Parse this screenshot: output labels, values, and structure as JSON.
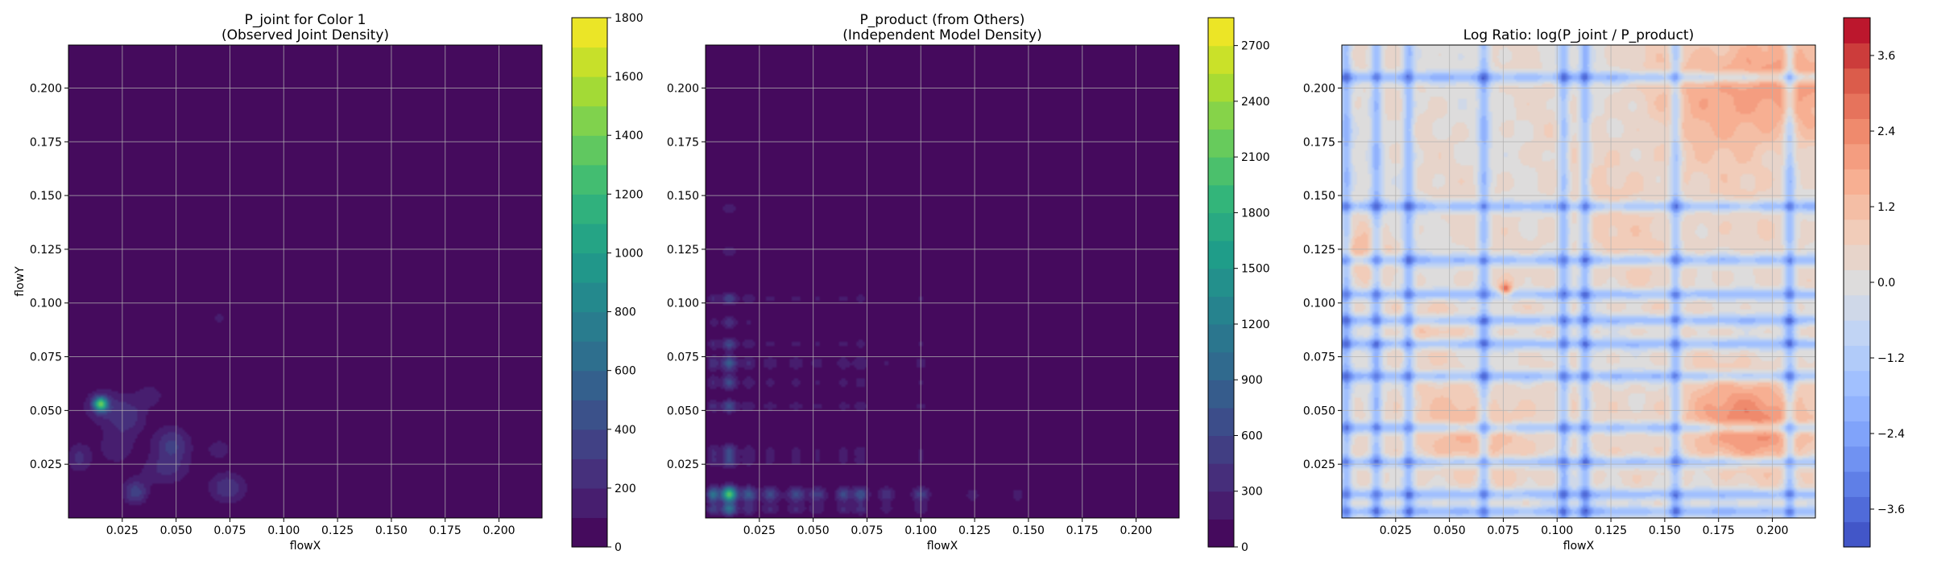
{
  "charts": [
    {
      "type": "heatmap",
      "title": [
        "P_joint for Color 1",
        "(Observed Joint Density)"
      ],
      "xlabel": "flowX",
      "ylabel": "flowY",
      "xlim": [
        0.0,
        0.22
      ],
      "ylim": [
        0.0,
        0.22
      ],
      "xticks": [
        0.025,
        0.05,
        0.075,
        0.1,
        0.125,
        0.15,
        0.175,
        0.2
      ],
      "xtick_labels": [
        "0.025",
        "0.050",
        "0.075",
        "0.100",
        "0.125",
        "0.150",
        "0.175",
        "0.200"
      ],
      "yticks": [
        0.025,
        0.05,
        0.075,
        0.1,
        0.125,
        0.15,
        0.175,
        0.2
      ],
      "ytick_labels": [
        "0.025",
        "0.050",
        "0.075",
        "0.100",
        "0.125",
        "0.150",
        "0.175",
        "0.200"
      ],
      "grid": true,
      "colormap": "viridis",
      "colorbar": {
        "min": 0,
        "max": 1800,
        "ticks": [
          0,
          200,
          400,
          600,
          800,
          1000,
          1200,
          1400,
          1600,
          1800
        ],
        "tick_labels": [
          "0",
          "200",
          "400",
          "600",
          "800",
          "1000",
          "1200",
          "1400",
          "1600",
          "1800"
        ],
        "levels": 18
      },
      "peaks": [
        {
          "x": 0.015,
          "y": 0.053,
          "value": 1200,
          "sx": 0.0022,
          "sy": 0.0022
        },
        {
          "x": 0.016,
          "y": 0.052,
          "value": 220,
          "sx": 0.007,
          "sy": 0.006
        },
        {
          "x": 0.028,
          "y": 0.047,
          "value": 230,
          "sx": 0.006,
          "sy": 0.006
        },
        {
          "x": 0.048,
          "y": 0.034,
          "value": 320,
          "sx": 0.006,
          "sy": 0.006
        },
        {
          "x": 0.045,
          "y": 0.022,
          "value": 200,
          "sx": 0.008,
          "sy": 0.005
        },
        {
          "x": 0.074,
          "y": 0.014,
          "value": 300,
          "sx": 0.006,
          "sy": 0.005
        },
        {
          "x": 0.031,
          "y": 0.012,
          "value": 360,
          "sx": 0.004,
          "sy": 0.004
        },
        {
          "x": 0.005,
          "y": 0.028,
          "value": 230,
          "sx": 0.004,
          "sy": 0.005
        },
        {
          "x": 0.022,
          "y": 0.033,
          "value": 180,
          "sx": 0.006,
          "sy": 0.006
        },
        {
          "x": 0.07,
          "y": 0.032,
          "value": 150,
          "sx": 0.005,
          "sy": 0.004
        },
        {
          "x": 0.07,
          "y": 0.093,
          "value": 120,
          "sx": 0.004,
          "sy": 0.003
        },
        {
          "x": 0.038,
          "y": 0.057,
          "value": 150,
          "sx": 0.005,
          "sy": 0.004
        }
      ]
    },
    {
      "type": "heatmap",
      "title": [
        "P_product (from Others)",
        "(Independent Model Density)"
      ],
      "xlabel": "flowX",
      "ylabel": "",
      "xlim": [
        0.0,
        0.22
      ],
      "ylim": [
        0.0,
        0.22
      ],
      "xticks": [
        0.025,
        0.05,
        0.075,
        0.1,
        0.125,
        0.15,
        0.175,
        0.2
      ],
      "xtick_labels": [
        "0.025",
        "0.050",
        "0.075",
        "0.100",
        "0.125",
        "0.150",
        "0.175",
        "0.200"
      ],
      "yticks": [
        0.025,
        0.05,
        0.075,
        0.1,
        0.125,
        0.15,
        0.175,
        0.2
      ],
      "ytick_labels": [
        "0.025",
        "0.050",
        "0.075",
        "0.100",
        "0.125",
        "0.150",
        "0.175",
        "0.200"
      ],
      "grid": true,
      "colormap": "viridis",
      "colorbar": {
        "min": 0,
        "max": 2850,
        "ticks": [
          0,
          300,
          600,
          900,
          1200,
          1500,
          1800,
          2100,
          2400,
          2700
        ],
        "tick_labels": [
          "0",
          "300",
          "600",
          "900",
          "1200",
          "1500",
          "1800",
          "2100",
          "2400",
          "2700"
        ],
        "levels": 19
      },
      "marginal_x": [
        {
          "x": 0.011,
          "w": 0.0025,
          "a": 1.0
        },
        {
          "x": 0.0035,
          "w": 0.002,
          "a": 0.5
        },
        {
          "x": 0.02,
          "w": 0.0025,
          "a": 0.4
        },
        {
          "x": 0.03,
          "w": 0.003,
          "a": 0.3
        },
        {
          "x": 0.042,
          "w": 0.003,
          "a": 0.3
        },
        {
          "x": 0.052,
          "w": 0.003,
          "a": 0.25
        },
        {
          "x": 0.064,
          "w": 0.0025,
          "a": 0.3
        },
        {
          "x": 0.072,
          "w": 0.0025,
          "a": 0.35
        },
        {
          "x": 0.084,
          "w": 0.003,
          "a": 0.2
        },
        {
          "x": 0.1,
          "w": 0.003,
          "a": 0.25
        },
        {
          "x": 0.124,
          "w": 0.0025,
          "a": 0.12
        },
        {
          "x": 0.145,
          "w": 0.002,
          "a": 0.12
        }
      ],
      "marginal_y": [
        {
          "y": 0.011,
          "w": 0.0025,
          "a": 1.0
        },
        {
          "y": 0.004,
          "w": 0.002,
          "a": 0.5
        },
        {
          "y": 0.026,
          "w": 0.002,
          "a": 0.25
        },
        {
          "y": 0.031,
          "w": 0.0025,
          "a": 0.3
        },
        {
          "y": 0.052,
          "w": 0.002,
          "a": 0.35
        },
        {
          "y": 0.063,
          "w": 0.0025,
          "a": 0.3
        },
        {
          "y": 0.072,
          "w": 0.0025,
          "a": 0.4
        },
        {
          "y": 0.081,
          "w": 0.002,
          "a": 0.3
        },
        {
          "y": 0.091,
          "w": 0.002,
          "a": 0.2
        },
        {
          "y": 0.102,
          "w": 0.002,
          "a": 0.3
        },
        {
          "y": 0.124,
          "w": 0.002,
          "a": 0.12
        },
        {
          "y": 0.144,
          "w": 0.002,
          "a": 0.12
        }
      ],
      "peak_value": 2100
    },
    {
      "type": "heatmap",
      "title": [
        "Log Ratio: log(P_joint / P_product)"
      ],
      "xlabel": "flowX",
      "ylabel": "",
      "xlim": [
        0.0,
        0.22
      ],
      "ylim": [
        0.0,
        0.22
      ],
      "xticks": [
        0.025,
        0.05,
        0.075,
        0.1,
        0.125,
        0.15,
        0.175,
        0.2
      ],
      "xtick_labels": [
        "0.025",
        "0.050",
        "0.075",
        "0.100",
        "0.125",
        "0.150",
        "0.175",
        "0.200"
      ],
      "yticks": [
        0.025,
        0.05,
        0.075,
        0.1,
        0.125,
        0.15,
        0.175,
        0.2
      ],
      "ytick_labels": [
        "0.025",
        "0.050",
        "0.075",
        "0.100",
        "0.125",
        "0.150",
        "0.175",
        "0.200"
      ],
      "grid": true,
      "colormap": "coolwarm",
      "colorbar": {
        "min": -4.2,
        "max": 4.2,
        "ticks": [
          -3.6,
          -2.4,
          -1.2,
          0.0,
          1.2,
          2.4,
          3.6
        ],
        "tick_labels": [
          "−3.6",
          "−2.4",
          "−1.2",
          "0.0",
          "1.2",
          "2.4",
          "3.6"
        ],
        "levels": 21
      },
      "blue_x": [
        0.002,
        0.016,
        0.031,
        0.066,
        0.103,
        0.113,
        0.155,
        0.208
      ],
      "blue_y": [
        0.003,
        0.011,
        0.026,
        0.042,
        0.066,
        0.081,
        0.092,
        0.104,
        0.12,
        0.145,
        0.205
      ],
      "red_regions": [
        {
          "x": 0.19,
          "y": 0.045,
          "sx": 0.025,
          "sy": 0.015,
          "a": 2.2
        },
        {
          "x": 0.195,
          "y": 0.2,
          "sx": 0.03,
          "sy": 0.02,
          "a": 2.0
        },
        {
          "x": 0.06,
          "y": 0.04,
          "sx": 0.03,
          "sy": 0.015,
          "a": 1.1
        },
        {
          "x": 0.01,
          "y": 0.125,
          "sx": 0.01,
          "sy": 0.01,
          "a": 1.0
        },
        {
          "x": 0.045,
          "y": 0.09,
          "sx": 0.012,
          "sy": 0.01,
          "a": 0.8
        },
        {
          "x": 0.14,
          "y": 0.14,
          "sx": 0.04,
          "sy": 0.03,
          "a": 0.5
        }
      ],
      "red_spot": {
        "x": 0.076,
        "y": 0.106,
        "a": 3.0
      }
    }
  ]
}
